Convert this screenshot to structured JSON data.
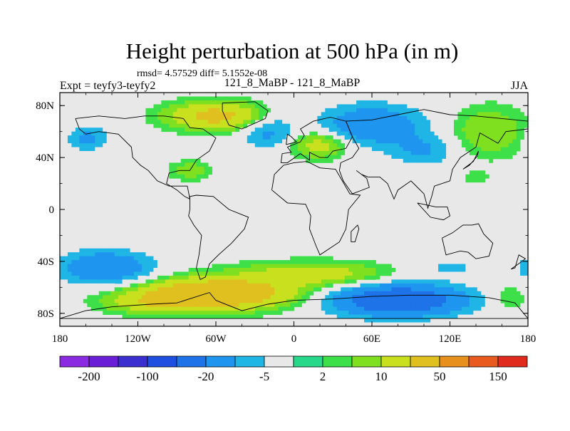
{
  "chart_data": {
    "type": "heatmap",
    "title": "Height perturbation at 500 hPa (in m)",
    "stats": "rmsd= 4.57529 diff= 5.1552e-08",
    "left_label": "Expt = teyfy3-teyfy2",
    "center_label": "121_8_MaBP - 121_8_MaBP",
    "right_label": "JJA",
    "x_ticks": [
      {
        "value": -180,
        "label": "180"
      },
      {
        "value": -120,
        "label": "120W"
      },
      {
        "value": -60,
        "label": "60W"
      },
      {
        "value": 0,
        "label": "0"
      },
      {
        "value": 60,
        "label": "60E"
      },
      {
        "value": 120,
        "label": "120E"
      },
      {
        "value": 180,
        "label": "180"
      }
    ],
    "y_ticks": [
      {
        "value": 80,
        "label": "80N"
      },
      {
        "value": 40,
        "label": "40N"
      },
      {
        "value": 0,
        "label": "0"
      },
      {
        "value": -40,
        "label": "40S"
      },
      {
        "value": -80,
        "label": "80S"
      }
    ],
    "xlim": [
      -180,
      180
    ],
    "ylim": [
      -90,
      90
    ],
    "colorbar": {
      "colors": [
        "#8a2be2",
        "#6a1fd6",
        "#3b2fd0",
        "#1f4fe0",
        "#1e73e8",
        "#1e96f0",
        "#1fb6e6",
        "#e8e8e8",
        "#28d88a",
        "#3ee04a",
        "#7fe020",
        "#c8e01e",
        "#e0c01e",
        "#e8901e",
        "#e85a1e",
        "#e02a1e"
      ],
      "labels": [
        {
          "boundary": 1,
          "text": "-200"
        },
        {
          "boundary": 3,
          "text": "-100"
        },
        {
          "boundary": 5,
          "text": "-20"
        },
        {
          "boundary": 7,
          "text": "-5"
        },
        {
          "boundary": 9,
          "text": "2"
        },
        {
          "boundary": 11,
          "text": "10"
        },
        {
          "boundary": 13,
          "text": "50"
        },
        {
          "boundary": 15,
          "text": "150"
        }
      ]
    },
    "background_color": "#e8e8e8",
    "anomalies": [
      {
        "lon": -160,
        "lat": 55,
        "value": -12,
        "rlon": 18,
        "rlat": 10
      },
      {
        "lon": -60,
        "lat": 72,
        "value": 25,
        "rlon": 35,
        "rlat": 10
      },
      {
        "lon": -20,
        "lat": 60,
        "value": -12,
        "rlon": 20,
        "rlat": 14
      },
      {
        "lon": 60,
        "lat": 65,
        "value": -18,
        "rlon": 40,
        "rlat": 16
      },
      {
        "lon": 20,
        "lat": 50,
        "value": 15,
        "rlon": 22,
        "rlat": 10
      },
      {
        "lon": 100,
        "lat": 45,
        "value": -10,
        "rlon": 25,
        "rlat": 12
      },
      {
        "lon": 150,
        "lat": 60,
        "value": 10,
        "rlon": 28,
        "rlat": 18
      },
      {
        "lon": -130,
        "lat": 32,
        "value": -4,
        "rlon": 15,
        "rlat": 6
      },
      {
        "lon": -80,
        "lat": 30,
        "value": 8,
        "rlon": 15,
        "rlat": 7
      },
      {
        "lon": 140,
        "lat": 25,
        "value": 4,
        "rlon": 10,
        "rlat": 6
      },
      {
        "lon": -145,
        "lat": -45,
        "value": -20,
        "rlon": 35,
        "rlat": 13
      },
      {
        "lon": -60,
        "lat": -65,
        "value": 40,
        "rlon": 55,
        "rlat": 11
      },
      {
        "lon": -110,
        "lat": -72,
        "value": 12,
        "rlon": 35,
        "rlat": 8
      },
      {
        "lon": 15,
        "lat": -50,
        "value": 15,
        "rlon": 55,
        "rlat": 9
      },
      {
        "lon": 80,
        "lat": -70,
        "value": -35,
        "rlon": 50,
        "rlat": 12
      },
      {
        "lon": 120,
        "lat": -45,
        "value": -6,
        "rlon": 30,
        "rlat": 8
      },
      {
        "lon": 165,
        "lat": -68,
        "value": 6,
        "rlon": 14,
        "rlat": 10
      }
    ],
    "coastlines": [
      {
        "name": "north-america",
        "points": [
          [
            -168,
            70
          ],
          [
            -150,
            72
          ],
          [
            -130,
            70
          ],
          [
            -115,
            72
          ],
          [
            -100,
            72
          ],
          [
            -85,
            70
          ],
          [
            -80,
            63
          ],
          [
            -70,
            62
          ],
          [
            -60,
            55
          ],
          [
            -65,
            45
          ],
          [
            -75,
            38
          ],
          [
            -80,
            30
          ],
          [
            -88,
            30
          ],
          [
            -96,
            28
          ],
          [
            -98,
            20
          ],
          [
            -90,
            15
          ],
          [
            -84,
            10
          ],
          [
            -80,
            8
          ],
          [
            -82,
            18
          ],
          [
            -96,
            18
          ],
          [
            -105,
            22
          ],
          [
            -112,
            30
          ],
          [
            -118,
            34
          ],
          [
            -124,
            40
          ],
          [
            -125,
            48
          ],
          [
            -135,
            58
          ],
          [
            -150,
            60
          ],
          [
            -160,
            58
          ],
          [
            -165,
            62
          ],
          [
            -168,
            70
          ]
        ]
      },
      {
        "name": "greenland",
        "points": [
          [
            -55,
            82
          ],
          [
            -30,
            83
          ],
          [
            -20,
            76
          ],
          [
            -22,
            70
          ],
          [
            -40,
            62
          ],
          [
            -50,
            65
          ],
          [
            -55,
            76
          ],
          [
            -55,
            82
          ]
        ]
      },
      {
        "name": "south-america",
        "points": [
          [
            -80,
            10
          ],
          [
            -75,
            11
          ],
          [
            -62,
            10
          ],
          [
            -50,
            0
          ],
          [
            -35,
            -6
          ],
          [
            -38,
            -15
          ],
          [
            -48,
            -26
          ],
          [
            -58,
            -35
          ],
          [
            -65,
            -42
          ],
          [
            -68,
            -52
          ],
          [
            -72,
            -54
          ],
          [
            -75,
            -45
          ],
          [
            -73,
            -35
          ],
          [
            -71,
            -20
          ],
          [
            -77,
            -12
          ],
          [
            -81,
            -5
          ],
          [
            -80,
            0
          ],
          [
            -80,
            10
          ]
        ]
      },
      {
        "name": "africa",
        "points": [
          [
            -17,
            15
          ],
          [
            -15,
            27
          ],
          [
            -8,
            34
          ],
          [
            0,
            36
          ],
          [
            10,
            37
          ],
          [
            20,
            32
          ],
          [
            32,
            31
          ],
          [
            43,
            12
          ],
          [
            51,
            11
          ],
          [
            42,
            0
          ],
          [
            40,
            -15
          ],
          [
            35,
            -25
          ],
          [
            20,
            -35
          ],
          [
            17,
            -28
          ],
          [
            12,
            -15
          ],
          [
            13,
            -5
          ],
          [
            9,
            4
          ],
          [
            -5,
            5
          ],
          [
            -17,
            15
          ]
        ]
      },
      {
        "name": "europe",
        "points": [
          [
            -10,
            36
          ],
          [
            -9,
            43
          ],
          [
            -2,
            44
          ],
          [
            -5,
            48
          ],
          [
            5,
            52
          ],
          [
            8,
            57
          ],
          [
            5,
            62
          ],
          [
            15,
            68
          ],
          [
            28,
            71
          ],
          [
            40,
            68
          ],
          [
            45,
            56
          ],
          [
            40,
            47
          ],
          [
            30,
            45
          ],
          [
            26,
            40
          ],
          [
            20,
            40
          ],
          [
            12,
            44
          ],
          [
            12,
            38
          ],
          [
            5,
            43
          ],
          [
            -5,
            36
          ],
          [
            -10,
            36
          ]
        ]
      },
      {
        "name": "asia",
        "points": [
          [
            40,
            68
          ],
          [
            60,
            69
          ],
          [
            80,
            73
          ],
          [
            100,
            77
          ],
          [
            120,
            73
          ],
          [
            140,
            72
          ],
          [
            160,
            70
          ],
          [
            180,
            68
          ],
          [
            180,
            62
          ],
          [
            163,
            60
          ],
          [
            157,
            51
          ],
          [
            143,
            59
          ],
          [
            140,
            48
          ],
          [
            128,
            40
          ],
          [
            122,
            31
          ],
          [
            120,
            22
          ],
          [
            108,
            18
          ],
          [
            106,
            10
          ],
          [
            103,
            1
          ],
          [
            100,
            12
          ],
          [
            95,
            17
          ],
          [
            90,
            22
          ],
          [
            80,
            15
          ],
          [
            77,
            8
          ],
          [
            72,
            20
          ],
          [
            66,
            25
          ],
          [
            57,
            25
          ],
          [
            52,
            27
          ],
          [
            48,
            30
          ],
          [
            56,
            24
          ],
          [
            58,
            17
          ],
          [
            45,
            12
          ],
          [
            38,
            22
          ],
          [
            35,
            30
          ],
          [
            36,
            36
          ],
          [
            45,
            40
          ],
          [
            50,
            47
          ],
          [
            45,
            56
          ],
          [
            40,
            68
          ]
        ]
      },
      {
        "name": "australia",
        "points": [
          [
            114,
            -22
          ],
          [
            122,
            -18
          ],
          [
            130,
            -12
          ],
          [
            137,
            -12
          ],
          [
            142,
            -11
          ],
          [
            146,
            -19
          ],
          [
            153,
            -26
          ],
          [
            150,
            -36
          ],
          [
            140,
            -38
          ],
          [
            134,
            -33
          ],
          [
            128,
            -32
          ],
          [
            117,
            -35
          ],
          [
            114,
            -22
          ]
        ]
      },
      {
        "name": "antarctica",
        "points": [
          [
            -180,
            -84
          ],
          [
            -160,
            -78
          ],
          [
            -140,
            -75
          ],
          [
            -110,
            -73
          ],
          [
            -90,
            -72
          ],
          [
            -65,
            -64
          ],
          [
            -60,
            -70
          ],
          [
            -40,
            -78
          ],
          [
            -20,
            -73
          ],
          [
            0,
            -70
          ],
          [
            30,
            -69
          ],
          [
            60,
            -67
          ],
          [
            90,
            -66
          ],
          [
            120,
            -66
          ],
          [
            150,
            -68
          ],
          [
            170,
            -72
          ],
          [
            180,
            -84
          ],
          [
            -180,
            -84
          ]
        ]
      },
      {
        "name": "uk",
        "points": [
          [
            -6,
            50
          ],
          [
            2,
            52
          ],
          [
            -2,
            56
          ],
          [
            -5,
            58
          ],
          [
            -6,
            50
          ]
        ]
      },
      {
        "name": "japan",
        "points": [
          [
            130,
            31
          ],
          [
            135,
            34
          ],
          [
            141,
            41
          ],
          [
            142,
            45
          ],
          [
            138,
            37
          ],
          [
            130,
            31
          ]
        ]
      },
      {
        "name": "madagascar",
        "points": [
          [
            44,
            -25
          ],
          [
            47,
            -25
          ],
          [
            50,
            -15
          ],
          [
            49,
            -12
          ],
          [
            44,
            -17
          ],
          [
            44,
            -25
          ]
        ]
      },
      {
        "name": "new-zealand",
        "points": [
          [
            167,
            -46
          ],
          [
            174,
            -41
          ],
          [
            178,
            -38
          ],
          [
            173,
            -35
          ],
          [
            170,
            -45
          ],
          [
            167,
            -46
          ]
        ]
      },
      {
        "name": "indonesia",
        "points": [
          [
            95,
            5
          ],
          [
            105,
            -6
          ],
          [
            115,
            -8
          ],
          [
            120,
            -5
          ],
          [
            118,
            2
          ],
          [
            109,
            2
          ],
          [
            95,
            5
          ]
        ]
      }
    ]
  }
}
